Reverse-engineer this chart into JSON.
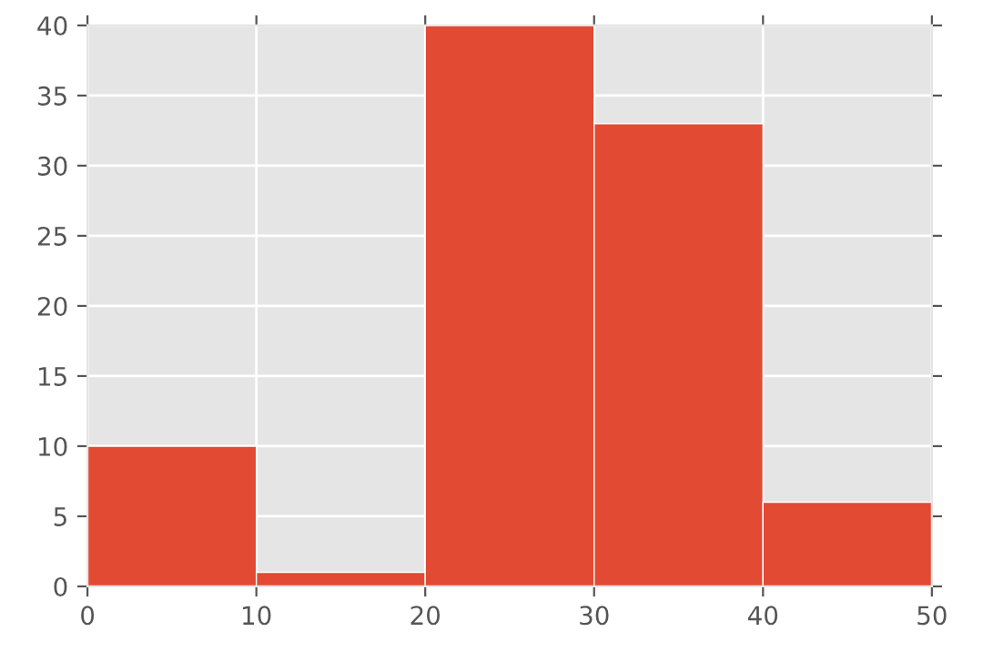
{
  "chart_data": {
    "type": "histogram",
    "bins": [
      0,
      10,
      20,
      30,
      40,
      50
    ],
    "values": [
      10,
      1,
      40,
      33,
      6
    ],
    "color": "#e24a33",
    "xlim": [
      0,
      50
    ],
    "xticks": [
      0,
      10,
      20,
      30,
      40,
      50
    ],
    "ylim": [
      0,
      40
    ],
    "yticks": [
      0,
      5,
      10,
      15,
      20,
      25,
      30,
      35,
      40
    ],
    "grid": true,
    "legend": false
  }
}
